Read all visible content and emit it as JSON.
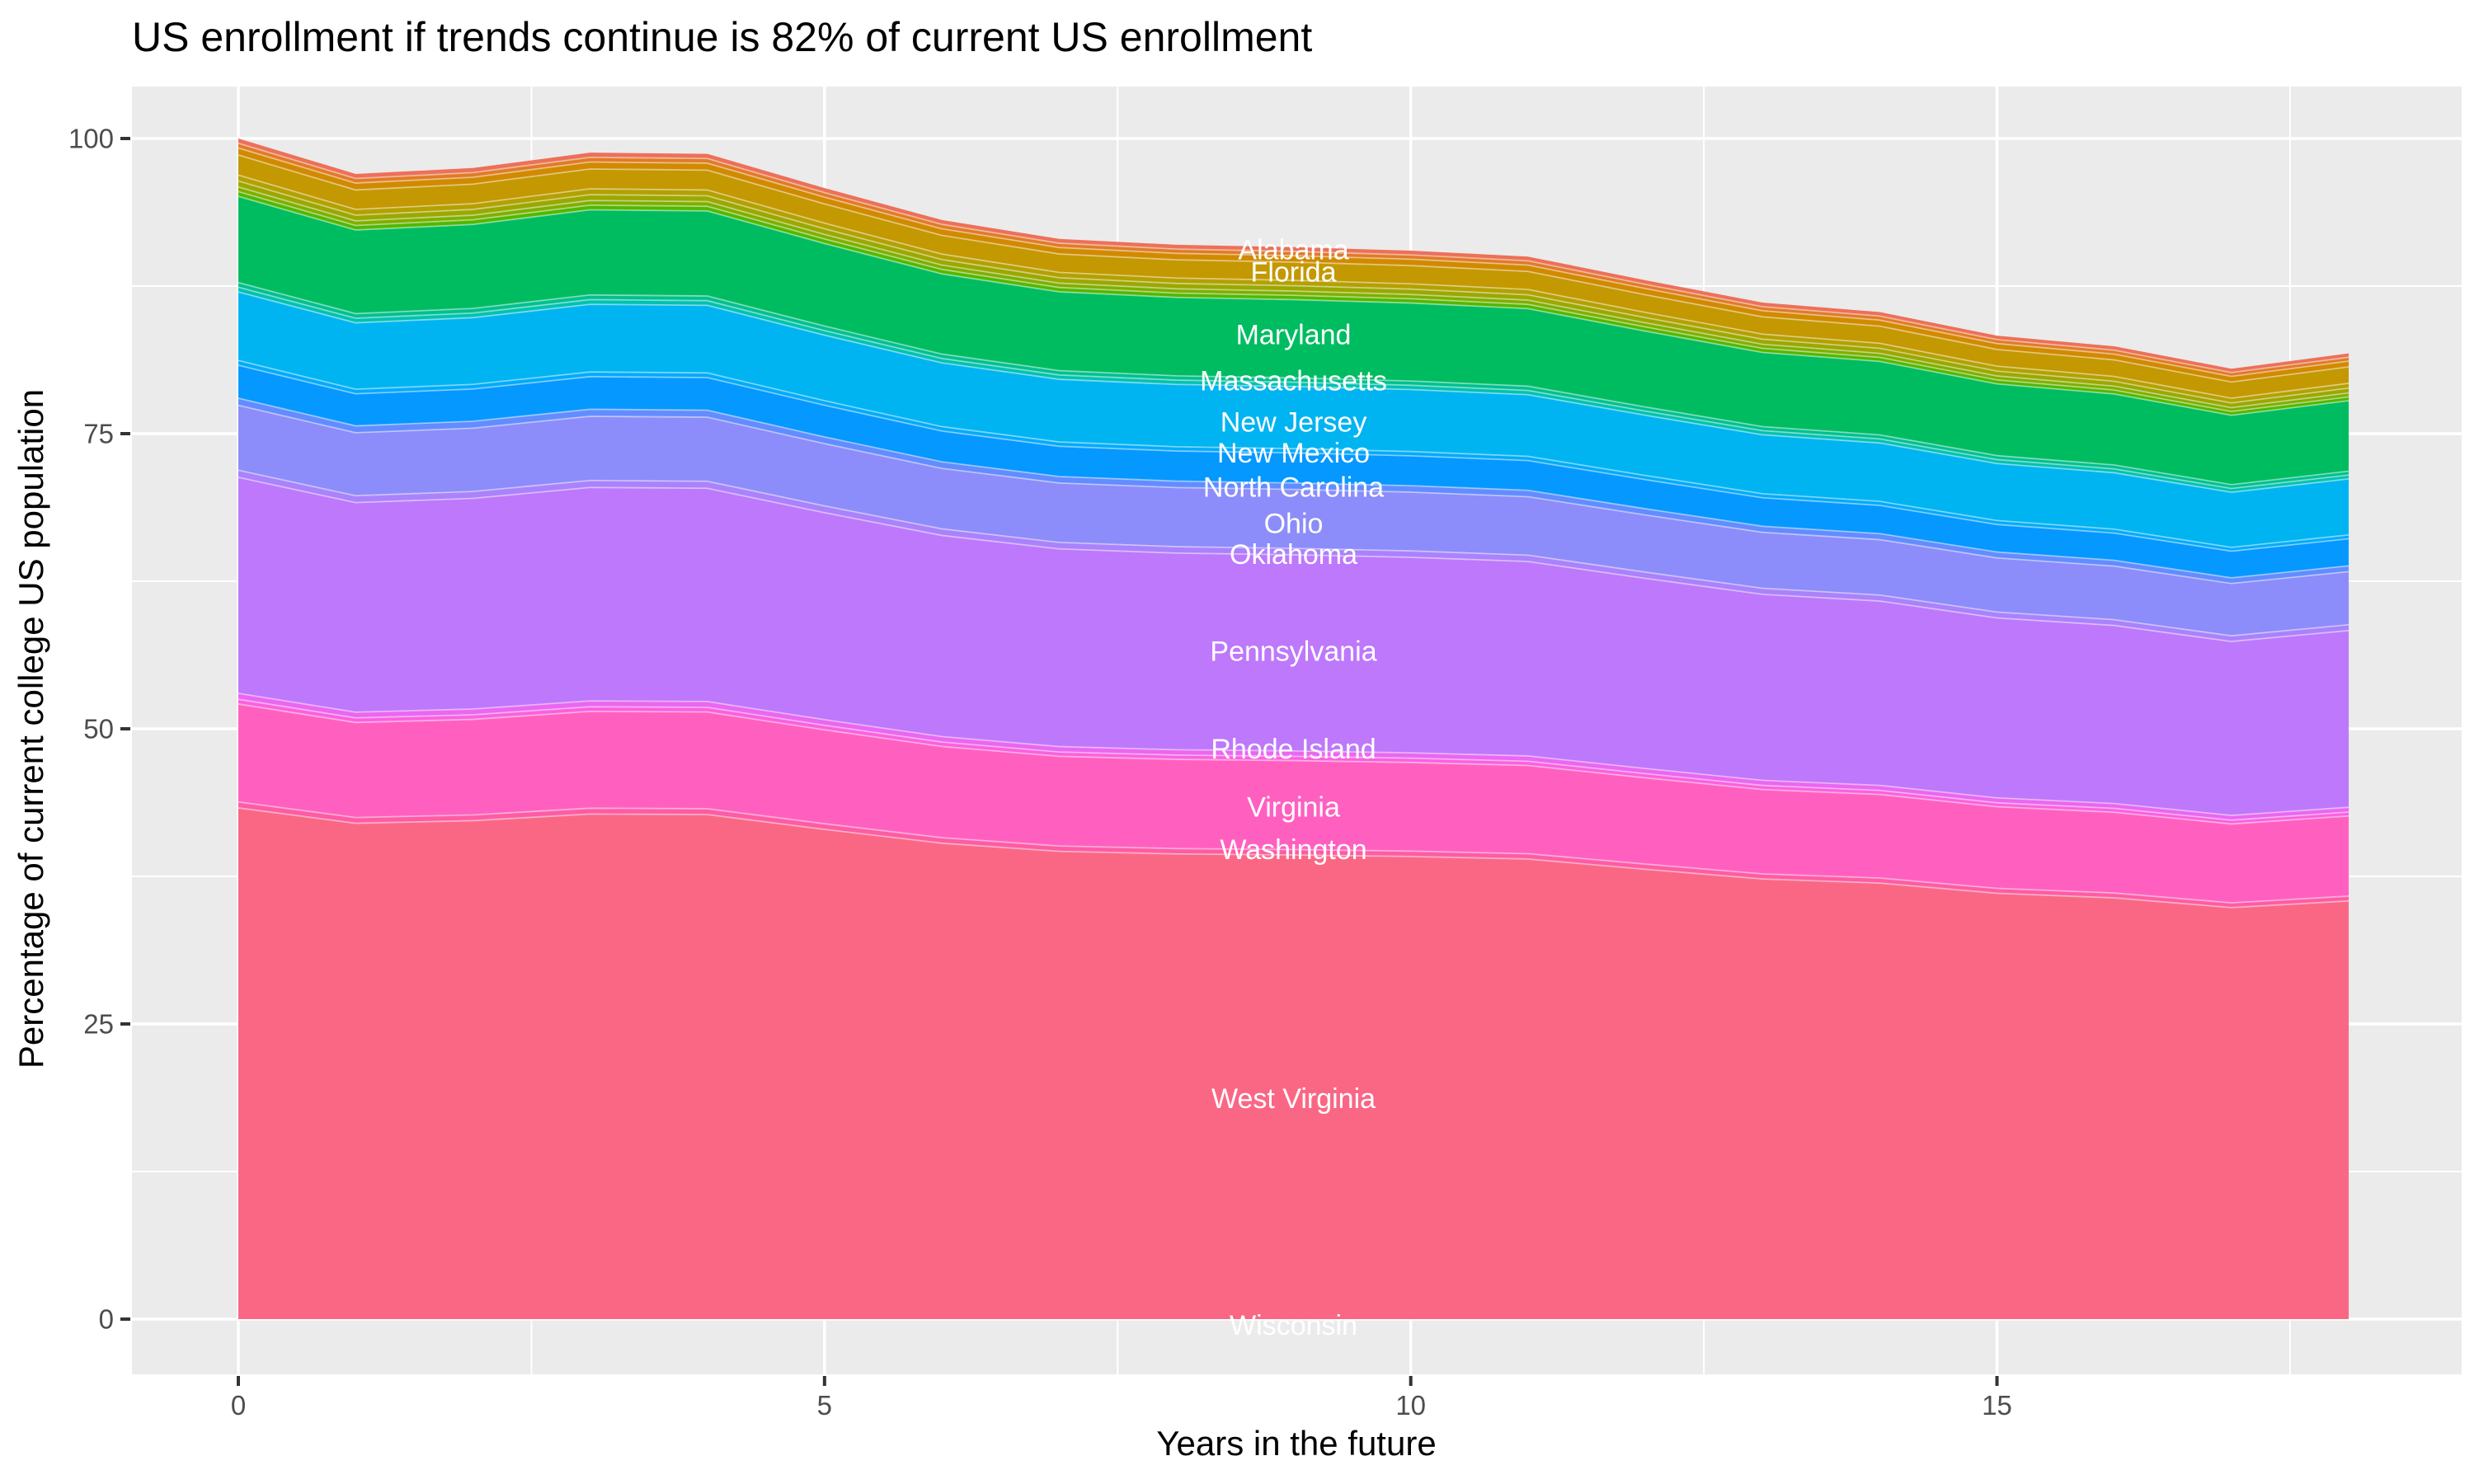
{
  "title": "US enrollment if trends continue is 82% of current US enrollment",
  "x_axis": {
    "title": "Years in the future",
    "ticks": [
      0,
      5,
      10,
      15
    ],
    "minor_ticks": [
      2.5,
      7.5,
      12.5,
      17.5
    ],
    "range": [
      0,
      18
    ]
  },
  "y_axis": {
    "title": "Percentage of current college US population",
    "ticks": [
      0,
      25,
      50,
      75,
      100
    ],
    "minor_ticks": [
      12.5,
      37.5,
      62.5,
      87.5
    ],
    "range": [
      0,
      100
    ]
  },
  "colors": {
    "panel_bg": "#EBEBEB",
    "gridline": "#FFFFFF",
    "tick_mark": "#333333",
    "tick_text": "#4D4D4D",
    "title_text": "#000000",
    "band_label_text": "#FFFFFF",
    "band_separator": "rgba(255,255,255,0.45)"
  },
  "chart_data": {
    "type": "area",
    "stacking": "stacked",
    "title": "US enrollment if trends continue is 82% of current US enrollment",
    "xlabel": "Years in the future",
    "ylabel": "Percentage of current college US population",
    "xlim": [
      0,
      18
    ],
    "ylim": [
      0,
      100
    ],
    "grid": true,
    "x": [
      0,
      1,
      2,
      3,
      4,
      5,
      6,
      7,
      8,
      9,
      10,
      11,
      12,
      13,
      14,
      15,
      16,
      17,
      18
    ],
    "total_pct": [
      100,
      97.0,
      97.5,
      98.8,
      98.7,
      95.8,
      93.1,
      91.5,
      91.0,
      90.8,
      90.5,
      90.0,
      88.0,
      86.1,
      85.3,
      83.3,
      82.4,
      80.5,
      81.8
    ],
    "final_value_pct": 82,
    "bands": [
      {
        "id": "band-01",
        "color": "#ED7058",
        "share": 0.004
      },
      {
        "id": "band-02",
        "color": "#E07B28",
        "share": 0.004
      },
      {
        "id": "band-03",
        "color": "#D18A00",
        "share": 0.006
      },
      {
        "id": "band-04",
        "color": "#C39800",
        "share": 0.017
      },
      {
        "id": "band-05",
        "color": "#B4A000",
        "share": 0.005
      },
      {
        "id": "band-06",
        "color": "#9AA800",
        "share": 0.005
      },
      {
        "id": "band-07",
        "color": "#7EAF00",
        "share": 0.004
      },
      {
        "id": "band-08",
        "color": "#51B800",
        "share": 0.004
      },
      {
        "id": "band-09",
        "color": "#00BC61",
        "share": 0.073
      },
      {
        "id": "band-10",
        "color": "#00C08F",
        "share": 0.004
      },
      {
        "id": "band-11",
        "color": "#00C2B0",
        "share": 0.004
      },
      {
        "id": "band-12",
        "color": "#00B4F2",
        "share": 0.058
      },
      {
        "id": "band-13",
        "color": "#00ABFB",
        "share": 0.004
      },
      {
        "id": "band-14",
        "color": "#0598FF",
        "share": 0.028
      },
      {
        "id": "band-15",
        "color": "#638CFF",
        "share": 0.006
      },
      {
        "id": "band-16",
        "color": "#8C8CFA",
        "share": 0.055
      },
      {
        "id": "band-17",
        "color": "#AA82FC",
        "share": 0.006
      },
      {
        "id": "band-18",
        "color": "#BE78FB",
        "share": 0.183
      },
      {
        "id": "band-19",
        "color": "#E967F1",
        "share": 0.005
      },
      {
        "id": "band-20",
        "color": "#FA61DE",
        "share": 0.004
      },
      {
        "id": "band-21",
        "color": "#FF60C0",
        "share": 0.083
      },
      {
        "id": "band-22",
        "color": "#FD5CA5",
        "share": 0.005
      },
      {
        "id": "band-23",
        "color": "#FA6785",
        "share": 0.433
      }
    ],
    "labels": [
      {
        "text": "Alabama",
        "x": 9,
        "y_pct": 90.6
      },
      {
        "text": "Florida",
        "x": 9,
        "y_pct": 88.7
      },
      {
        "text": "Maryland",
        "x": 9,
        "y_pct": 83.4
      },
      {
        "text": "Massachusetts",
        "x": 9,
        "y_pct": 79.5
      },
      {
        "text": "New Jersey",
        "x": 9,
        "y_pct": 76.0
      },
      {
        "text": "New Mexico",
        "x": 9,
        "y_pct": 73.4
      },
      {
        "text": "North Carolina",
        "x": 9,
        "y_pct": 70.5
      },
      {
        "text": "Ohio",
        "x": 9,
        "y_pct": 67.4
      },
      {
        "text": "Oklahoma",
        "x": 9,
        "y_pct": 64.8
      },
      {
        "text": "Pennsylvania",
        "x": 9,
        "y_pct": 56.6
      },
      {
        "text": "Rhode Island",
        "x": 9,
        "y_pct": 48.3
      },
      {
        "text": "Virginia",
        "x": 9,
        "y_pct": 43.4
      },
      {
        "text": "Washington",
        "x": 9,
        "y_pct": 39.8
      },
      {
        "text": "West Virginia",
        "x": 9,
        "y_pct": 18.7
      },
      {
        "text": "Wisconsin",
        "x": 9,
        "y_pct": -0.5
      }
    ]
  }
}
